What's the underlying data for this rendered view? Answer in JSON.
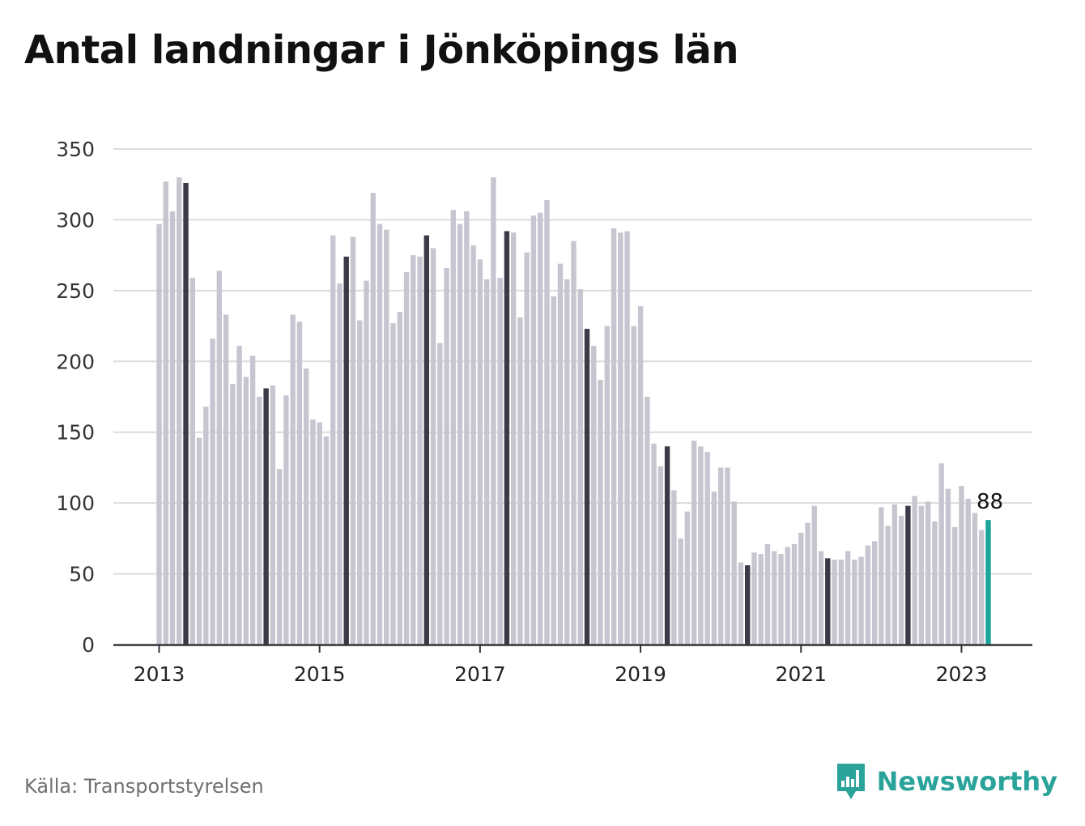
{
  "title": "Antal landningar i Jönköpings län",
  "source": "Källa: Transportstyrelsen",
  "brand": {
    "name": "Newsworthy",
    "icon": "newsworthy-logo-icon"
  },
  "colors": {
    "bar": "#c7c6d0",
    "highlight_bar": "#3b3a47",
    "latest_bar": "#1ba39c",
    "grid": "#dcdcdc",
    "axis": "#333333",
    "brand": "#2aa39a"
  },
  "chart_data": {
    "type": "bar",
    "title": "Antal landningar i Jönköpings län",
    "xlabel": "",
    "ylabel": "",
    "ylim": [
      0,
      350
    ],
    "yticks": [
      0,
      50,
      100,
      150,
      200,
      250,
      300,
      350
    ],
    "xticks": [
      "2013",
      "2015",
      "2017",
      "2019",
      "2021",
      "2023"
    ],
    "grid": true,
    "start": "2013-01",
    "end": "2023-05",
    "frequency": "monthly",
    "highlight_month": "May",
    "latest_label": "88",
    "values": [
      297,
      327,
      306,
      330,
      326,
      259,
      146,
      168,
      216,
      264,
      233,
      184,
      211,
      189,
      204,
      175,
      181,
      183,
      124,
      176,
      233,
      228,
      195,
      159,
      157,
      147,
      289,
      255,
      274,
      288,
      229,
      257,
      319,
      297,
      293,
      227,
      235,
      263,
      275,
      274,
      289,
      280,
      213,
      266,
      307,
      297,
      306,
      282,
      272,
      258,
      330,
      259,
      292,
      291,
      231,
      277,
      303,
      305,
      314,
      246,
      269,
      258,
      285,
      251,
      223,
      211,
      187,
      225,
      294,
      291,
      292,
      225,
      239,
      175,
      142,
      126,
      140,
      109,
      75,
      94,
      144,
      140,
      136,
      108,
      125,
      125,
      101,
      58,
      56,
      65,
      64,
      71,
      66,
      64,
      69,
      71,
      79,
      86,
      98,
      66,
      61,
      60,
      60,
      66,
      60,
      62,
      70,
      73,
      97,
      84,
      99,
      91,
      98,
      105,
      98,
      101,
      87,
      128,
      110,
      83,
      112,
      103,
      93,
      81,
      88
    ]
  }
}
